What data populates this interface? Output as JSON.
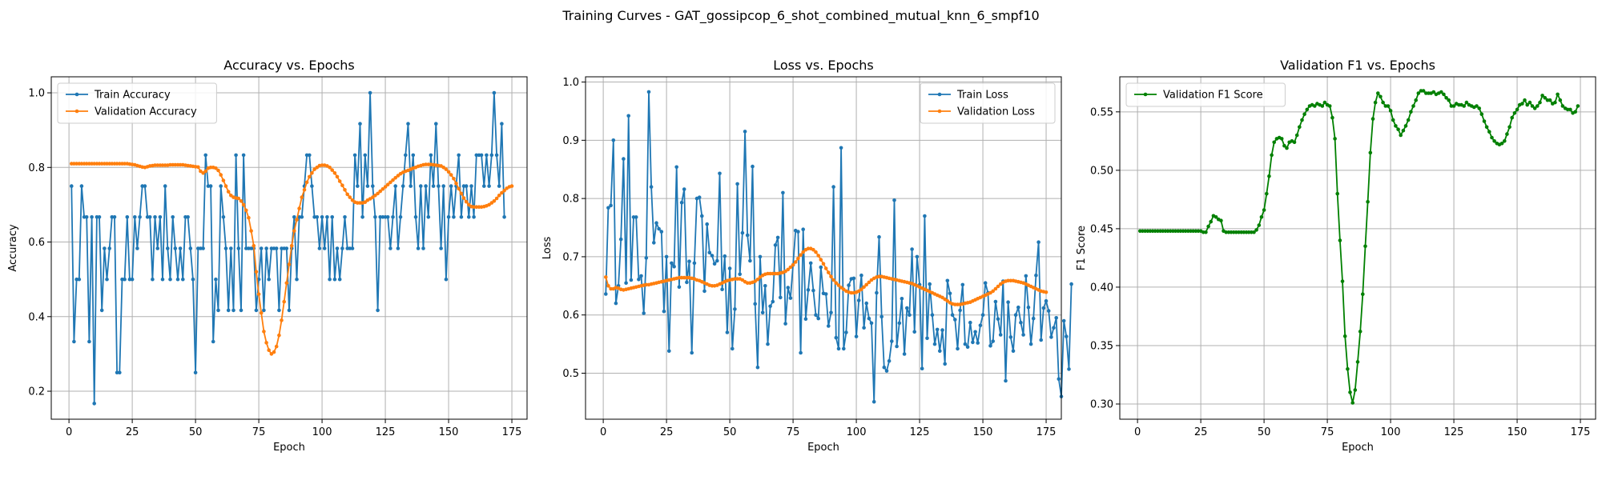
{
  "figure": {
    "suptitle": "Training Curves - GAT_gossipcop_6_shot_combined_mutual_knn_6_smpf10"
  },
  "chart_data": [
    {
      "type": "line",
      "title": "Accuracy vs. Epochs",
      "xlabel": "Epoch",
      "ylabel": "Accuracy",
      "xlim": [
        -7,
        181
      ],
      "ylim": [
        0.125,
        1.043
      ],
      "xticks": [
        0,
        25,
        50,
        75,
        100,
        125,
        150,
        175
      ],
      "yticks": [
        0.2,
        0.4,
        0.6,
        0.8,
        1.0
      ],
      "ytick_decimals": 1,
      "grid": true,
      "legend_position": "upper left",
      "series": [
        {
          "name": "Train Accuracy",
          "color": "#1f77b4",
          "x_start": 1,
          "values": [
            0.75,
            0.333,
            0.5,
            0.5,
            0.75,
            0.667,
            0.667,
            0.333,
            0.667,
            0.167,
            0.667,
            0.667,
            0.417,
            0.583,
            0.5,
            0.583,
            0.667,
            0.667,
            0.25,
            0.25,
            0.5,
            0.5,
            0.667,
            0.5,
            0.5,
            0.667,
            0.583,
            0.667,
            0.75,
            0.75,
            0.667,
            0.667,
            0.5,
            0.667,
            0.583,
            0.667,
            0.5,
            0.75,
            0.583,
            0.5,
            0.667,
            0.583,
            0.5,
            0.583,
            0.5,
            0.667,
            0.667,
            0.583,
            0.5,
            0.25,
            0.583,
            0.583,
            0.583,
            0.833,
            0.75,
            0.75,
            0.333,
            0.5,
            0.417,
            0.75,
            0.667,
            0.583,
            0.417,
            0.583,
            0.417,
            0.833,
            0.583,
            0.417,
            0.833,
            0.583,
            0.583,
            0.583,
            0.583,
            0.417,
            0.5,
            0.583,
            0.417,
            0.583,
            0.5,
            0.583,
            0.583,
            0.583,
            0.417,
            0.583,
            0.583,
            0.583,
            0.417,
            0.583,
            0.667,
            0.5,
            0.667,
            0.667,
            0.75,
            0.833,
            0.833,
            0.75,
            0.667,
            0.667,
            0.583,
            0.667,
            0.583,
            0.667,
            0.5,
            0.667,
            0.5,
            0.583,
            0.5,
            0.583,
            0.667,
            0.583,
            0.583,
            0.583,
            0.833,
            0.75,
            0.917,
            0.667,
            0.833,
            0.75,
            1.0,
            0.75,
            0.667,
            0.417,
            0.667,
            0.667,
            0.667,
            0.667,
            0.583,
            0.667,
            0.75,
            0.583,
            0.667,
            0.75,
            0.833,
            0.917,
            0.75,
            0.833,
            0.667,
            0.583,
            0.75,
            0.583,
            0.75,
            0.667,
            0.833,
            0.75,
            0.917,
            0.75,
            0.583,
            0.75,
            0.5,
            0.667,
            0.75,
            0.667,
            0.75,
            0.833,
            0.667,
            0.75,
            0.75,
            0.667,
            0.75,
            0.667,
            0.833,
            0.833,
            0.833,
            0.75,
            0.833,
            0.75,
            0.833,
            1.0,
            0.833,
            0.75,
            0.917,
            0.667
          ]
        },
        {
          "name": "Validation Accuracy",
          "color": "#ff7f0e",
          "x_start": 1,
          "values": [
            0.81,
            0.81,
            0.81,
            0.81,
            0.81,
            0.81,
            0.81,
            0.81,
            0.81,
            0.81,
            0.81,
            0.81,
            0.81,
            0.81,
            0.81,
            0.81,
            0.81,
            0.81,
            0.81,
            0.81,
            0.81,
            0.81,
            0.81,
            0.809,
            0.808,
            0.807,
            0.805,
            0.803,
            0.801,
            0.8,
            0.802,
            0.804,
            0.805,
            0.806,
            0.806,
            0.806,
            0.806,
            0.806,
            0.806,
            0.807,
            0.807,
            0.807,
            0.807,
            0.807,
            0.807,
            0.806,
            0.805,
            0.804,
            0.803,
            0.802,
            0.801,
            0.79,
            0.785,
            0.79,
            0.798,
            0.8,
            0.8,
            0.798,
            0.792,
            0.78,
            0.765,
            0.75,
            0.735,
            0.725,
            0.72,
            0.718,
            0.717,
            0.71,
            0.7,
            0.685,
            0.665,
            0.63,
            0.59,
            0.52,
            0.46,
            0.41,
            0.36,
            0.33,
            0.31,
            0.3,
            0.305,
            0.32,
            0.35,
            0.39,
            0.44,
            0.49,
            0.54,
            0.59,
            0.63,
            0.66,
            0.69,
            0.72,
            0.74,
            0.76,
            0.775,
            0.785,
            0.795,
            0.8,
            0.805,
            0.806,
            0.806,
            0.804,
            0.8,
            0.793,
            0.785,
            0.775,
            0.763,
            0.752,
            0.74,
            0.728,
            0.72,
            0.712,
            0.707,
            0.705,
            0.705,
            0.705,
            0.707,
            0.712,
            0.716,
            0.72,
            0.725,
            0.73,
            0.736,
            0.742,
            0.748,
            0.754,
            0.76,
            0.766,
            0.772,
            0.778,
            0.783,
            0.787,
            0.79,
            0.792,
            0.795,
            0.798,
            0.8,
            0.803,
            0.805,
            0.807,
            0.808,
            0.808,
            0.808,
            0.807,
            0.806,
            0.805,
            0.804,
            0.8,
            0.795,
            0.788,
            0.78,
            0.77,
            0.757,
            0.743,
            0.73,
            0.718,
            0.708,
            0.7,
            0.695,
            0.694,
            0.694,
            0.694,
            0.694,
            0.695,
            0.697,
            0.7,
            0.705,
            0.71,
            0.717,
            0.725,
            0.732,
            0.738,
            0.744,
            0.748,
            0.75
          ]
        }
      ]
    },
    {
      "type": "line",
      "title": "Loss vs. Epochs",
      "xlabel": "Epoch",
      "ylabel": "Loss",
      "xlim": [
        -7,
        181
      ],
      "ylim": [
        0.421,
        1.009
      ],
      "xticks": [
        0,
        25,
        50,
        75,
        100,
        125,
        150,
        175
      ],
      "yticks": [
        0.5,
        0.6,
        0.7,
        0.8,
        0.9,
        1.0
      ],
      "ytick_decimals": 1,
      "grid": true,
      "legend_position": "upper right",
      "series": [
        {
          "name": "Train Loss",
          "color": "#1f77b4",
          "x_start": 1,
          "values": [
            0.636,
            0.784,
            0.788,
            0.9,
            0.62,
            0.65,
            0.73,
            0.868,
            0.655,
            0.942,
            0.66,
            0.768,
            0.768,
            0.661,
            0.667,
            0.603,
            0.698,
            0.983,
            0.82,
            0.724,
            0.758,
            0.748,
            0.743,
            0.606,
            0.7,
            0.538,
            0.689,
            0.683,
            0.854,
            0.648,
            0.793,
            0.816,
            0.656,
            0.692,
            0.535,
            0.689,
            0.8,
            0.802,
            0.77,
            0.641,
            0.756,
            0.707,
            0.702,
            0.688,
            0.693,
            0.843,
            0.644,
            0.701,
            0.57,
            0.68,
            0.542,
            0.61,
            0.825,
            0.67,
            0.741,
            0.915,
            0.737,
            0.693,
            0.855,
            0.619,
            0.51,
            0.7,
            0.604,
            0.65,
            0.55,
            0.615,
            0.623,
            0.72,
            0.733,
            0.63,
            0.81,
            0.585,
            0.647,
            0.629,
            0.686,
            0.745,
            0.743,
            0.535,
            0.747,
            0.593,
            0.643,
            0.689,
            0.642,
            0.6,
            0.594,
            0.682,
            0.637,
            0.636,
            0.581,
            0.604,
            0.82,
            0.561,
            0.542,
            0.887,
            0.542,
            0.57,
            0.651,
            0.662,
            0.663,
            0.563,
            0.625,
            0.668,
            0.578,
            0.62,
            0.594,
            0.586,
            0.451,
            0.638,
            0.734,
            0.597,
            0.51,
            0.504,
            0.521,
            0.555,
            0.797,
            0.546,
            0.586,
            0.628,
            0.533,
            0.612,
            0.6,
            0.713,
            0.571,
            0.7,
            0.652,
            0.508,
            0.77,
            0.56,
            0.653,
            0.6,
            0.55,
            0.575,
            0.538,
            0.574,
            0.516,
            0.659,
            0.637,
            0.6,
            0.592,
            0.542,
            0.608,
            0.652,
            0.55,
            0.545,
            0.587,
            0.553,
            0.571,
            0.552,
            0.582,
            0.6,
            0.655,
            0.638,
            0.547,
            0.555,
            0.623,
            0.593,
            0.566,
            0.658,
            0.487,
            0.622,
            0.562,
            0.538,
            0.6,
            0.613,
            0.587,
            0.566,
            0.667,
            0.613,
            0.55,
            0.594,
            0.668,
            0.725,
            0.557,
            0.612,
            0.624,
            0.607,
            0.562,
            0.578,
            0.595,
            0.49,
            0.46,
            0.59,
            0.563,
            0.507,
            0.653
          ]
        },
        {
          "name": "Validation Loss",
          "color": "#ff7f0e",
          "x_start": 1,
          "values": [
            0.665,
            0.65,
            0.645,
            0.645,
            0.647,
            0.646,
            0.644,
            0.643,
            0.644,
            0.645,
            0.646,
            0.647,
            0.648,
            0.649,
            0.65,
            0.651,
            0.652,
            0.652,
            0.653,
            0.654,
            0.655,
            0.656,
            0.657,
            0.658,
            0.659,
            0.66,
            0.661,
            0.662,
            0.663,
            0.664,
            0.664,
            0.664,
            0.664,
            0.664,
            0.663,
            0.662,
            0.66,
            0.659,
            0.657,
            0.655,
            0.653,
            0.651,
            0.65,
            0.65,
            0.651,
            0.653,
            0.655,
            0.657,
            0.659,
            0.66,
            0.661,
            0.662,
            0.662,
            0.662,
            0.66,
            0.657,
            0.655,
            0.655,
            0.656,
            0.658,
            0.661,
            0.665,
            0.668,
            0.67,
            0.671,
            0.671,
            0.671,
            0.671,
            0.671,
            0.672,
            0.673,
            0.675,
            0.678,
            0.682,
            0.686,
            0.691,
            0.697,
            0.703,
            0.708,
            0.712,
            0.714,
            0.714,
            0.712,
            0.708,
            0.702,
            0.695,
            0.688,
            0.68,
            0.673,
            0.666,
            0.66,
            0.655,
            0.651,
            0.647,
            0.644,
            0.641,
            0.639,
            0.638,
            0.638,
            0.639,
            0.641,
            0.644,
            0.648,
            0.652,
            0.656,
            0.66,
            0.663,
            0.665,
            0.666,
            0.666,
            0.665,
            0.664,
            0.663,
            0.662,
            0.661,
            0.66,
            0.659,
            0.658,
            0.657,
            0.656,
            0.655,
            0.654,
            0.652,
            0.65,
            0.648,
            0.646,
            0.644,
            0.642,
            0.64,
            0.638,
            0.636,
            0.634,
            0.632,
            0.63,
            0.627,
            0.624,
            0.621,
            0.619,
            0.618,
            0.618,
            0.618,
            0.619,
            0.62,
            0.621,
            0.622,
            0.624,
            0.626,
            0.628,
            0.63,
            0.632,
            0.634,
            0.636,
            0.638,
            0.641,
            0.645,
            0.649,
            0.653,
            0.656,
            0.658,
            0.659,
            0.659,
            0.659,
            0.658,
            0.657,
            0.656,
            0.655,
            0.653,
            0.651,
            0.649,
            0.647,
            0.645,
            0.643,
            0.641,
            0.64,
            0.639
          ]
        }
      ]
    },
    {
      "type": "line",
      "title": "Validation F1 vs. Epochs",
      "xlabel": "Epoch",
      "ylabel": "F1 Score",
      "xlim": [
        -7,
        181
      ],
      "ylim": [
        0.287,
        0.58
      ],
      "xticks": [
        0,
        25,
        50,
        75,
        100,
        125,
        150,
        175
      ],
      "yticks": [
        0.3,
        0.35,
        0.4,
        0.45,
        0.5,
        0.55
      ],
      "ytick_decimals": 2,
      "grid": true,
      "legend_position": "upper left",
      "series": [
        {
          "name": "Validation F1 Score",
          "color": "#008000",
          "x_start": 1,
          "values": [
            0.448,
            0.448,
            0.448,
            0.448,
            0.448,
            0.448,
            0.448,
            0.448,
            0.448,
            0.448,
            0.448,
            0.448,
            0.448,
            0.448,
            0.448,
            0.448,
            0.448,
            0.448,
            0.448,
            0.448,
            0.448,
            0.448,
            0.448,
            0.448,
            0.448,
            0.447,
            0.447,
            0.452,
            0.456,
            0.461,
            0.46,
            0.458,
            0.457,
            0.448,
            0.447,
            0.447,
            0.447,
            0.447,
            0.447,
            0.447,
            0.447,
            0.447,
            0.447,
            0.447,
            0.447,
            0.447,
            0.449,
            0.453,
            0.46,
            0.466,
            0.48,
            0.495,
            0.513,
            0.524,
            0.527,
            0.528,
            0.527,
            0.521,
            0.519,
            0.524,
            0.525,
            0.524,
            0.53,
            0.537,
            0.543,
            0.548,
            0.552,
            0.555,
            0.556,
            0.555,
            0.557,
            0.556,
            0.555,
            0.558,
            0.556,
            0.555,
            0.545,
            0.527,
            0.48,
            0.44,
            0.405,
            0.358,
            0.33,
            0.31,
            0.301,
            0.312,
            0.336,
            0.362,
            0.394,
            0.435,
            0.473,
            0.515,
            0.544,
            0.558,
            0.566,
            0.563,
            0.558,
            0.555,
            0.555,
            0.551,
            0.543,
            0.538,
            0.535,
            0.53,
            0.534,
            0.538,
            0.543,
            0.55,
            0.555,
            0.56,
            0.566,
            0.568,
            0.568,
            0.566,
            0.566,
            0.566,
            0.567,
            0.565,
            0.566,
            0.567,
            0.565,
            0.562,
            0.56,
            0.555,
            0.555,
            0.557,
            0.556,
            0.556,
            0.555,
            0.558,
            0.556,
            0.555,
            0.554,
            0.555,
            0.553,
            0.548,
            0.542,
            0.537,
            0.533,
            0.528,
            0.525,
            0.523,
            0.522,
            0.523,
            0.525,
            0.531,
            0.537,
            0.545,
            0.549,
            0.552,
            0.556,
            0.557,
            0.56,
            0.556,
            0.558,
            0.555,
            0.553,
            0.555,
            0.558,
            0.564,
            0.562,
            0.56,
            0.56,
            0.557,
            0.558,
            0.565,
            0.56,
            0.555,
            0.553,
            0.552,
            0.552,
            0.549,
            0.55,
            0.555
          ]
        }
      ]
    }
  ]
}
